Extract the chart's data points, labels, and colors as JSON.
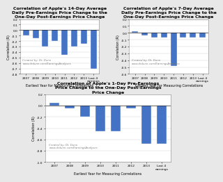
{
  "chart14": {
    "title": "Correlation of Apple's 14-Day Average\nDaily Pre-Earnings Price Change to the\nOne-Day Post-Earnings Price Change",
    "categories": [
      "2007",
      "2008",
      "2009",
      "2010",
      "2011",
      "2012",
      "2013",
      "Last 4\nearnings"
    ],
    "values": [
      -0.1,
      -0.15,
      -0.3,
      -0.2,
      -0.45,
      -0.3,
      -0.25,
      -0.7
    ],
    "ylim": [
      -0.8,
      0.2
    ],
    "yticks": [
      -0.8,
      -0.7,
      -0.6,
      -0.5,
      -0.4,
      -0.3,
      -0.2,
      -0.1,
      0.0,
      0.1,
      0.2
    ]
  },
  "chart7": {
    "title": "Correlation of Apple's 7-Day Average\nDaily Pre-Earnings Price Change to the\nOne-Day Post-Earnings Price Change",
    "categories": [
      "2007",
      "2008",
      "2009",
      "2010",
      "2011",
      "2012",
      "2013",
      "Last 4\nearnings"
    ],
    "values": [
      0.02,
      -0.04,
      -0.07,
      -0.07,
      -0.48,
      -0.07,
      -0.07,
      -0.07
    ],
    "ylim": [
      -0.6,
      0.2
    ],
    "yticks": [
      -0.6,
      -0.5,
      -0.4,
      -0.3,
      -0.2,
      -0.1,
      0.0,
      0.1,
      0.2
    ]
  },
  "chart1": {
    "title": "Correlation of Apple's 1-Day Pre-Earnings\nPrice Change to the One-Day Post-Earnings\nPrice Change",
    "categories": [
      "2007",
      "2008",
      "2009",
      "2010",
      "2011",
      "2012",
      "2013",
      "Last 4\nearnings"
    ],
    "values": [
      0.05,
      -0.05,
      -0.2,
      -0.45,
      -0.45,
      -0.05,
      -0.68,
      -0.68
    ],
    "ylim": [
      -1.0,
      0.2
    ],
    "yticks": [
      -1.0,
      -0.8,
      -0.6,
      -0.4,
      -0.2,
      0.0,
      0.2
    ]
  },
  "bar_color": "#4472c4",
  "ylabel": "Correlation (R)",
  "xlabel": "Earliest Year for Measuring Correlations",
  "credit_line1": "Created by: Dr. Dunn",
  "credit_line2": "www.drdunn.com/EarningsAnalyses",
  "background_color": "#e8e8e8",
  "plot_bg": "#ffffff"
}
